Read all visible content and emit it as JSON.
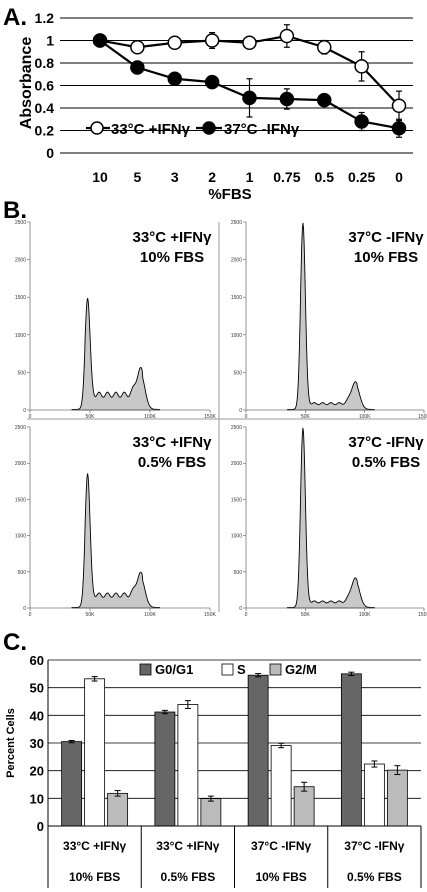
{
  "panels": {
    "a": "A.",
    "b": "B.",
    "c": "C."
  },
  "chart_data": [
    {
      "type": "line",
      "panel": "A.",
      "ylabel": "Absorbance",
      "xlabel": "%FBS",
      "categories": [
        "10",
        "5",
        "3",
        "2",
        "1",
        "0.75",
        "0.5",
        "0.25",
        "0"
      ],
      "y_ticks": [
        "0",
        "0.2",
        "0.4",
        "0.6",
        "0.8",
        "1",
        "1.2"
      ],
      "ylim": [
        0,
        1.2
      ],
      "grid": true,
      "legend_position": "bottom-left",
      "series": [
        {
          "name": "33°C +IFNγ",
          "marker": "open-circle",
          "values": [
            1.0,
            0.94,
            0.98,
            1.0,
            0.98,
            1.04,
            0.94,
            0.77,
            0.42
          ],
          "errors": [
            0.02,
            0.03,
            0.03,
            0.07,
            0.03,
            0.1,
            0.06,
            0.13,
            0.13
          ]
        },
        {
          "name": "37°C -IFNγ",
          "marker": "filled-circle",
          "values": [
            1.0,
            0.76,
            0.66,
            0.63,
            0.49,
            0.48,
            0.47,
            0.28,
            0.22
          ],
          "errors": [
            0.02,
            0.03,
            0.03,
            0.03,
            0.17,
            0.09,
            0.03,
            0.08,
            0.08
          ]
        }
      ]
    },
    {
      "type": "area",
      "panel": "B.",
      "subplots": [
        {
          "label_line1": "33°C +IFNγ",
          "label_line2": "10% FBS",
          "g1_peak": 1480,
          "g2_peak": 330,
          "s_level": 230,
          "y_ticks": [
            "2500",
            "2000",
            "1500",
            "1000",
            "500",
            "0"
          ],
          "x_ticks": [
            "0",
            "50K",
            "100K",
            "150K"
          ],
          "ylim": [
            0,
            2500
          ],
          "xlim": [
            0,
            150
          ]
        },
        {
          "label_line1": "37°C -IFNγ",
          "label_line2": "10% FBS",
          "g1_peak": 2480,
          "g2_peak": 280,
          "s_level": 90,
          "y_ticks": [
            "2500",
            "2000",
            "1500",
            "1000",
            "500",
            "0"
          ],
          "x_ticks": [
            "0",
            "50K",
            "100K",
            "150K"
          ],
          "ylim": [
            0,
            2500
          ],
          "xlim": [
            0,
            150
          ]
        },
        {
          "label_line1": "33°C +IFNγ",
          "label_line2": "0.5% FBS",
          "g1_peak": 1850,
          "g2_peak": 290,
          "s_level": 200,
          "y_ticks": [
            "2500",
            "2000",
            "1500",
            "1000",
            "500",
            "0"
          ],
          "x_ticks": [
            "0",
            "50K",
            "100K",
            "150K"
          ],
          "ylim": [
            0,
            2500
          ],
          "xlim": [
            0,
            150
          ]
        },
        {
          "label_line1": "37°C -IFNγ",
          "label_line2": "0.5% FBS",
          "g1_peak": 2480,
          "g2_peak": 320,
          "s_level": 90,
          "y_ticks": [
            "2500",
            "2000",
            "1500",
            "1000",
            "500",
            "0"
          ],
          "x_ticks": [
            "0",
            "50K",
            "100K",
            "150K"
          ],
          "ylim": [
            0,
            2500
          ],
          "xlim": [
            0,
            150
          ]
        }
      ]
    },
    {
      "type": "bar",
      "panel": "C.",
      "ylabel": "Percent Cells",
      "y_ticks": [
        "0",
        "10",
        "20",
        "30",
        "40",
        "50",
        "60"
      ],
      "ylim": [
        0,
        60
      ],
      "grid": true,
      "legend_position": "top",
      "categories": [
        {
          "line1": "33°C +IFNγ",
          "line2": "10% FBS"
        },
        {
          "line1": "33°C +IFNγ",
          "line2": "0.5% FBS"
        },
        {
          "line1": "37°C -IFNγ",
          "line2": "10% FBS"
        },
        {
          "line1": "37°C -IFNγ",
          "line2": "0.5% FBS"
        }
      ],
      "series": [
        {
          "name": "G0/G1",
          "color": "#666666",
          "values": [
            30.5,
            41.2,
            54.5,
            55.0
          ],
          "errors": [
            0.4,
            0.6,
            0.6,
            0.6
          ]
        },
        {
          "name": "S",
          "color": "#ffffff",
          "values": [
            53.2,
            43.9,
            29.1,
            22.4
          ],
          "errors": [
            0.8,
            1.4,
            0.8,
            1.1
          ]
        },
        {
          "name": "G2/M",
          "color": "#bbbbbb",
          "values": [
            11.8,
            9.9,
            14.2,
            20.2
          ],
          "errors": [
            1.0,
            0.9,
            1.6,
            1.6
          ]
        }
      ]
    }
  ]
}
